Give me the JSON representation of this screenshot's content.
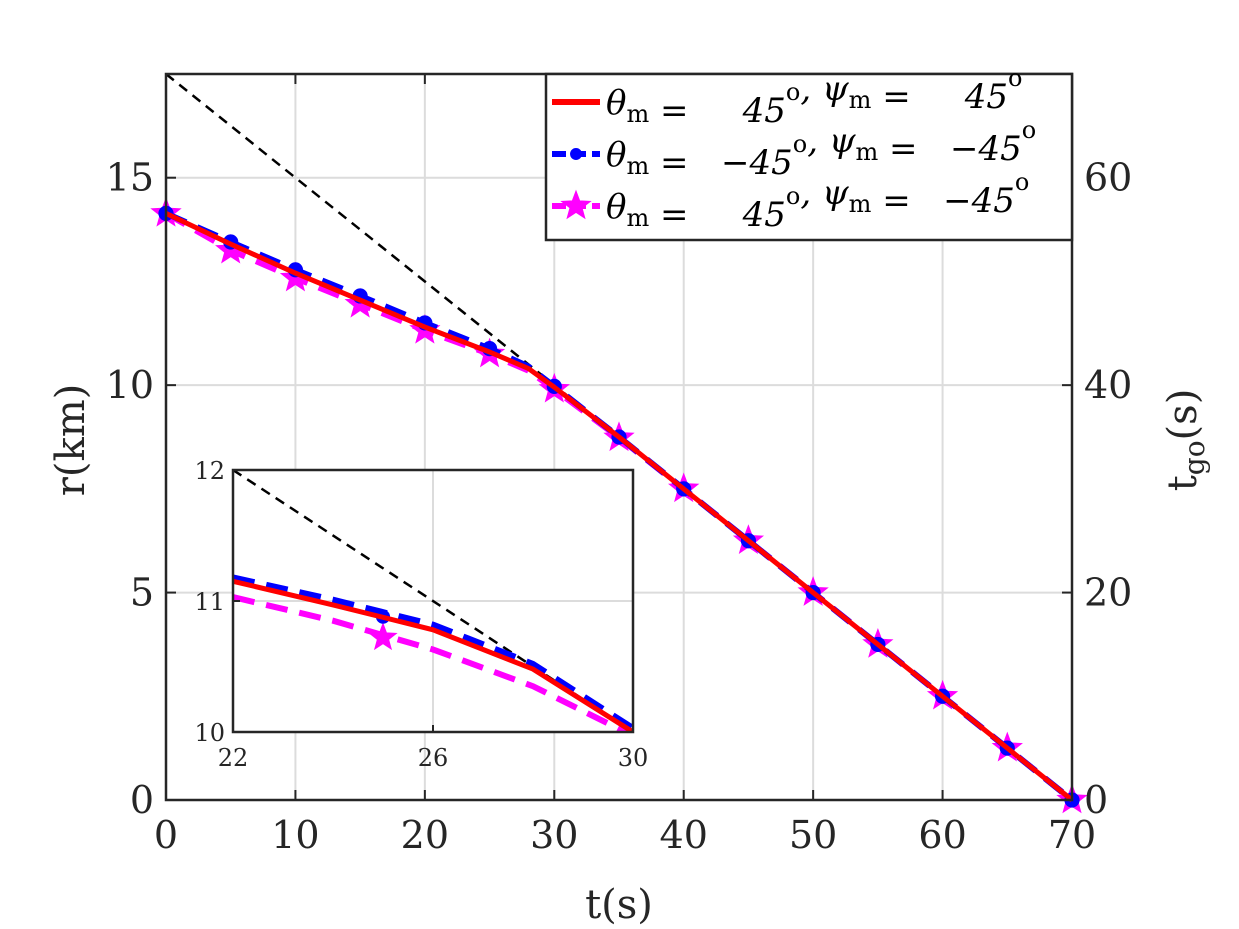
{
  "chart_data": {
    "type": "line",
    "xlabel": "t(s)",
    "ylabel_left": "r(km)",
    "ylabel_right": "t_go(s)",
    "xlim": [
      0,
      70
    ],
    "ylim_left": [
      0,
      17.5
    ],
    "ylim_right": [
      0,
      70
    ],
    "xticks": [
      0,
      10,
      20,
      30,
      40,
      50,
      60,
      70
    ],
    "yticks_left": [
      0,
      5,
      10,
      15
    ],
    "yticks_right": [
      0,
      20,
      40,
      60
    ],
    "grid": true,
    "legend_position": "top-right",
    "reference_line": {
      "axis": "right",
      "x": [
        0,
        70
      ],
      "y": [
        70,
        0
      ],
      "color": "#000000",
      "style": "dashed"
    },
    "series": [
      {
        "name": "θm = 45°, ψm = 45°",
        "legend": {
          "theta": "45",
          "psi": "45"
        },
        "color": "#ff0000",
        "style": "solid",
        "marker": "none",
        "x": [
          0,
          5,
          10,
          15,
          20,
          25,
          28,
          30,
          35,
          40,
          45,
          50,
          55,
          60,
          65,
          70
        ],
        "y": [
          14.14,
          13.4,
          12.7,
          12.05,
          11.4,
          10.8,
          10.4,
          9.95,
          8.75,
          7.5,
          6.25,
          5.0,
          3.75,
          2.5,
          1.25,
          0
        ]
      },
      {
        "name": "θm = −45°, ψm = −45°",
        "legend": {
          "theta": "−45",
          "psi": "−45"
        },
        "color": "#0000ff",
        "style": "dashed",
        "marker": "circle",
        "x": [
          0,
          5,
          10,
          15,
          20,
          25,
          28,
          30,
          35,
          40,
          45,
          50,
          55,
          60,
          65,
          70
        ],
        "y": [
          14.14,
          13.45,
          12.78,
          12.15,
          11.5,
          10.88,
          10.45,
          9.97,
          8.75,
          7.5,
          6.25,
          5.0,
          3.75,
          2.5,
          1.25,
          0
        ]
      },
      {
        "name": "θm = 45°, ψm = −45°",
        "legend": {
          "theta": "45",
          "psi": "−45"
        },
        "color": "#ff00ff",
        "style": "dashed",
        "marker": "star",
        "x": [
          0,
          5,
          10,
          15,
          20,
          25,
          28,
          30,
          35,
          40,
          45,
          50,
          55,
          60,
          65,
          70
        ],
        "y": [
          14.14,
          13.25,
          12.58,
          11.95,
          11.32,
          10.75,
          10.35,
          9.9,
          8.73,
          7.5,
          6.25,
          5.0,
          3.75,
          2.5,
          1.25,
          0
        ]
      }
    ],
    "inset": {
      "xlim": [
        22,
        30
      ],
      "ylim": [
        10,
        12
      ],
      "xticks": [
        22,
        26,
        30
      ],
      "yticks": [
        10,
        11,
        12
      ],
      "reference_line": {
        "x": [
          22,
          30
        ],
        "y": [
          12,
          10
        ]
      },
      "series": [
        {
          "color": "#ff0000",
          "style": "solid",
          "marker": "none",
          "x": [
            22,
            24,
            26,
            28,
            30
          ],
          "y": [
            11.15,
            10.97,
            10.78,
            10.48,
            10.0
          ],
          "marker_points": []
        },
        {
          "color": "#0000ff",
          "style": "dashed",
          "marker": "circle",
          "x": [
            22,
            24,
            26,
            28,
            30
          ],
          "y": [
            11.18,
            11.01,
            10.82,
            10.52,
            10.03
          ],
          "marker_points": [
            [
              25,
              10.88
            ]
          ]
        },
        {
          "color": "#ff00ff",
          "style": "dashed",
          "marker": "star",
          "x": [
            22,
            24,
            26,
            28,
            30
          ],
          "y": [
            11.03,
            10.85,
            10.63,
            10.35,
            9.97
          ],
          "marker_points": [
            [
              25,
              10.72
            ]
          ]
        }
      ]
    }
  }
}
